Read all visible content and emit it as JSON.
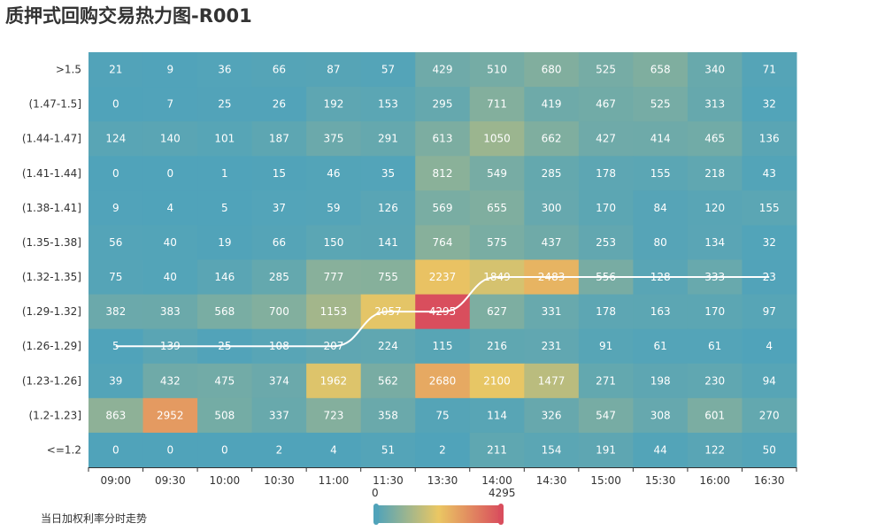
{
  "title": "质押式回购交易热力图-R001",
  "legend_label": "当日加权利率分时走势",
  "colors": {
    "gradient": [
      "#50a3ba",
      "#eac763",
      "#d94e5d"
    ],
    "line": "#ffffff",
    "axis": "#333333",
    "cell_text": "#ffffff"
  },
  "visual_map": {
    "min_label": "0",
    "max_label": "4295"
  },
  "chart_data": {
    "type": "heatmap",
    "x_categories": [
      "09:00",
      "09:30",
      "10:00",
      "10:30",
      "11:00",
      "11:30",
      "13:30",
      "14:00",
      "14:30",
      "15:00",
      "15:30",
      "16:00",
      "16:30"
    ],
    "y_categories": [
      ">1.5",
      "(1.47-1.5]",
      "(1.44-1.47]",
      "(1.41-1.44]",
      "(1.38-1.41]",
      "(1.35-1.38]",
      "(1.32-1.35]",
      "(1.29-1.32]",
      "(1.26-1.29]",
      "(1.23-1.26]",
      "(1.2-1.23]",
      "<=1.2"
    ],
    "values": [
      [
        21,
        9,
        36,
        66,
        87,
        57,
        429,
        510,
        680,
        525,
        658,
        340,
        71
      ],
      [
        0,
        7,
        25,
        26,
        192,
        153,
        295,
        711,
        419,
        467,
        525,
        313,
        32
      ],
      [
        124,
        140,
        101,
        187,
        375,
        291,
        613,
        1050,
        662,
        427,
        414,
        465,
        136
      ],
      [
        0,
        0,
        1,
        15,
        46,
        35,
        812,
        549,
        285,
        178,
        155,
        218,
        43
      ],
      [
        9,
        4,
        5,
        37,
        59,
        126,
        569,
        655,
        300,
        170,
        84,
        120,
        155
      ],
      [
        56,
        40,
        19,
        66,
        150,
        141,
        764,
        575,
        437,
        253,
        80,
        134,
        32
      ],
      [
        75,
        40,
        146,
        285,
        777,
        755,
        2237,
        1849,
        2483,
        556,
        128,
        333,
        23
      ],
      [
        382,
        383,
        568,
        700,
        1153,
        2057,
        4295,
        627,
        331,
        178,
        163,
        170,
        97
      ],
      [
        5,
        139,
        25,
        108,
        207,
        224,
        115,
        216,
        231,
        91,
        61,
        61,
        4
      ],
      [
        39,
        432,
        475,
        374,
        1962,
        562,
        2680,
        2100,
        1477,
        271,
        198,
        230,
        94
      ],
      [
        863,
        2952,
        508,
        337,
        723,
        358,
        75,
        114,
        326,
        547,
        308,
        601,
        270
      ],
      [
        0,
        0,
        0,
        2,
        4,
        51,
        2,
        211,
        154,
        191,
        44,
        122,
        50
      ]
    ],
    "value_range": [
      0,
      4295
    ],
    "line": {
      "name": "当日加权利率分时走势",
      "y_bucket_index": [
        8,
        8,
        8,
        8,
        8,
        7,
        7,
        6,
        6,
        6,
        6,
        6,
        6
      ]
    }
  }
}
